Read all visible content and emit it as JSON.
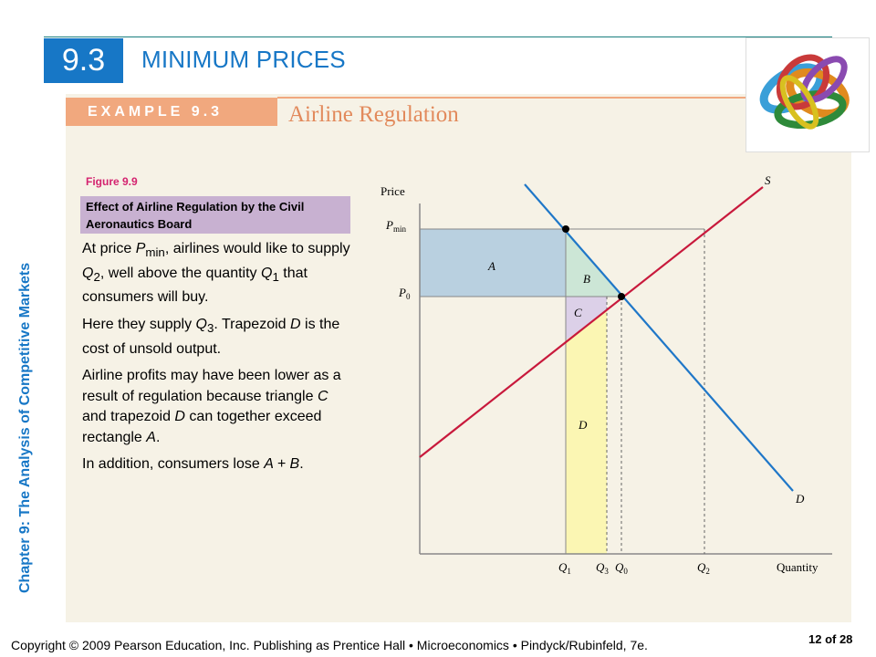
{
  "header": {
    "section_number": "9.3",
    "section_title": "MINIMUM PRICES"
  },
  "example": {
    "label": "EXAMPLE 9.3",
    "title": "Airline Regulation"
  },
  "sidebar": {
    "vertical_title": "Chapter 9:  The Analysis of Competitive Markets"
  },
  "figure": {
    "label": "Figure 9.9",
    "caption": "Effect of Airline Regulation by the Civil Aeronautics Board"
  },
  "description": {
    "p1_a": "At price ",
    "p1_pmin_var": "P",
    "p1_pmin_sub": "min",
    "p1_b": ", airlines would like to supply ",
    "p1_q2_var": "Q",
    "p1_q2_sub": "2",
    "p1_c": ", well above the quantity ",
    "p1_q1_var": "Q",
    "p1_q1_sub": "1",
    "p1_d": " that consumers will buy.",
    "p2_a": "Here they supply ",
    "p2_q3_var": "Q",
    "p2_q3_sub": "3",
    "p2_b": ". Trapezoid ",
    "p2_d_var": "D",
    "p2_c": " is the cost of unsold output.",
    "p3_a": "Airline profits may have been lower as a result of regulation because triangle ",
    "p3_c_var": "C",
    "p3_b": " and trapezoid ",
    "p3_d_var": "D",
    "p3_c": " can together exceed rectangle ",
    "p3_a_var": "A",
    "p3_d": ".",
    "p4_a": "In addition, consumers lose ",
    "p4_expr": "A + B",
    "p4_b": "."
  },
  "chart_data": {
    "type": "diagram",
    "ylabel": "Price",
    "xlabel": "Quantity",
    "price_labels": {
      "pmin": "P",
      "pmin_sub": "min",
      "p0": "P",
      "p0_sub": "0"
    },
    "quantity_labels": {
      "q1": "Q",
      "q1_sub": "1",
      "q3": "Q",
      "q3_sub": "3",
      "q0": "Q",
      "q0_sub": "0",
      "q2": "Q",
      "q2_sub": "2"
    },
    "curves": {
      "supply": "S",
      "demand": "D"
    },
    "regions": {
      "a": "A",
      "b": "B",
      "c": "C",
      "d": "D"
    },
    "colors": {
      "supply": "#c8193c",
      "demand": "#1f77c8",
      "region_a": "#b9d0e0",
      "region_b": "#cce6d6",
      "region_c": "#dcd0e8",
      "region_d": "#fbf6b3"
    }
  },
  "footer": {
    "copyright": "Copyright © 2009 Pearson Education, Inc. Publishing as Prentice Hall  •  Microeconomics  •  Pindyck/Rubinfeld, 7e.",
    "page": "12 of 28"
  }
}
